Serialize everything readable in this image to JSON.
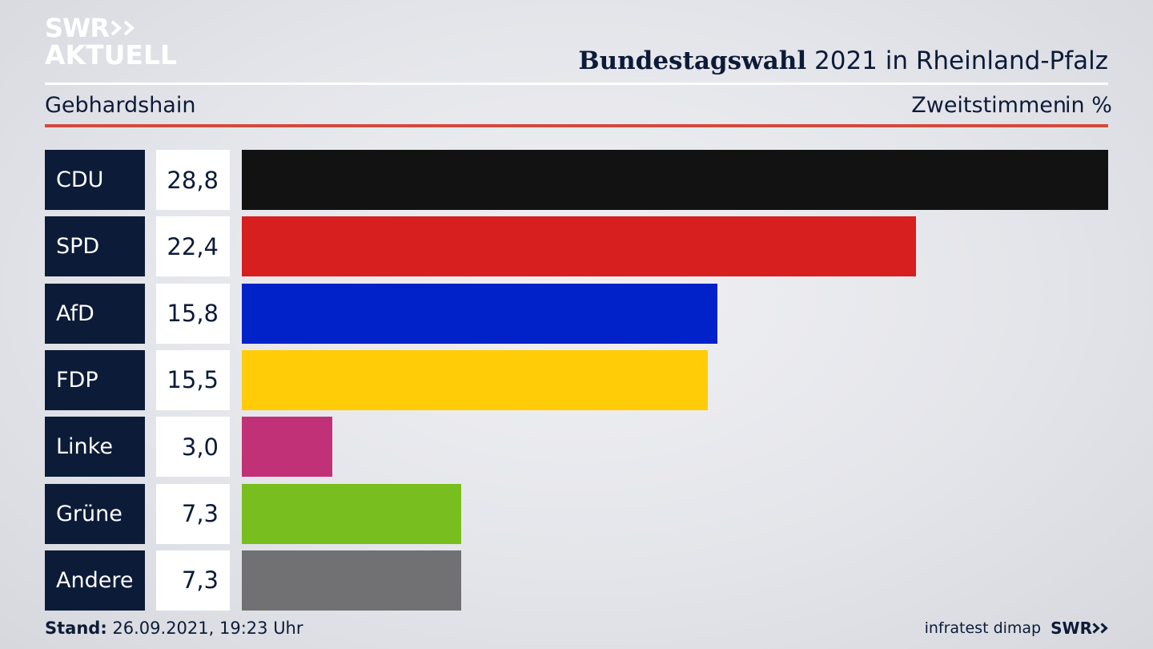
{
  "brand": {
    "logo_line1": "SWR",
    "logo_line2": "AKTUELL",
    "footer_logo": "SWR",
    "logo_color": "#ffffff"
  },
  "header": {
    "title_bold": "Bundestagswahl",
    "title_rest": "2021 in Rheinland-Pfalz",
    "place": "Gebhardshain",
    "vote_type": "Zweitstimmen",
    "unit": "in %"
  },
  "footer": {
    "stand_label": "Stand:",
    "stand_value": "26.09.2021, 19:23 Uhr",
    "institute": "infratest dimap"
  },
  "chart_data": {
    "type": "bar",
    "orientation": "horizontal",
    "title": "Bundestagswahl 2021 in Rheinland-Pfalz",
    "subtitle": "Gebhardshain",
    "xlabel": "",
    "ylabel": "",
    "unit": "in %",
    "xlim": [
      0,
      28.8
    ],
    "grid": false,
    "categories": [
      "CDU",
      "SPD",
      "AfD",
      "FDP",
      "Linke",
      "Grüne",
      "Andere"
    ],
    "values": [
      28.8,
      22.4,
      15.8,
      15.5,
      3.0,
      7.3,
      7.3
    ],
    "labels": [
      "28,8",
      "22,4",
      "15,8",
      "15,5",
      "3,0",
      "7,3",
      "7,3"
    ],
    "colors": [
      "#121212",
      "#d81f1f",
      "#0022c8",
      "#ffcc07",
      "#c13177",
      "#78be1e",
      "#717173"
    ]
  }
}
